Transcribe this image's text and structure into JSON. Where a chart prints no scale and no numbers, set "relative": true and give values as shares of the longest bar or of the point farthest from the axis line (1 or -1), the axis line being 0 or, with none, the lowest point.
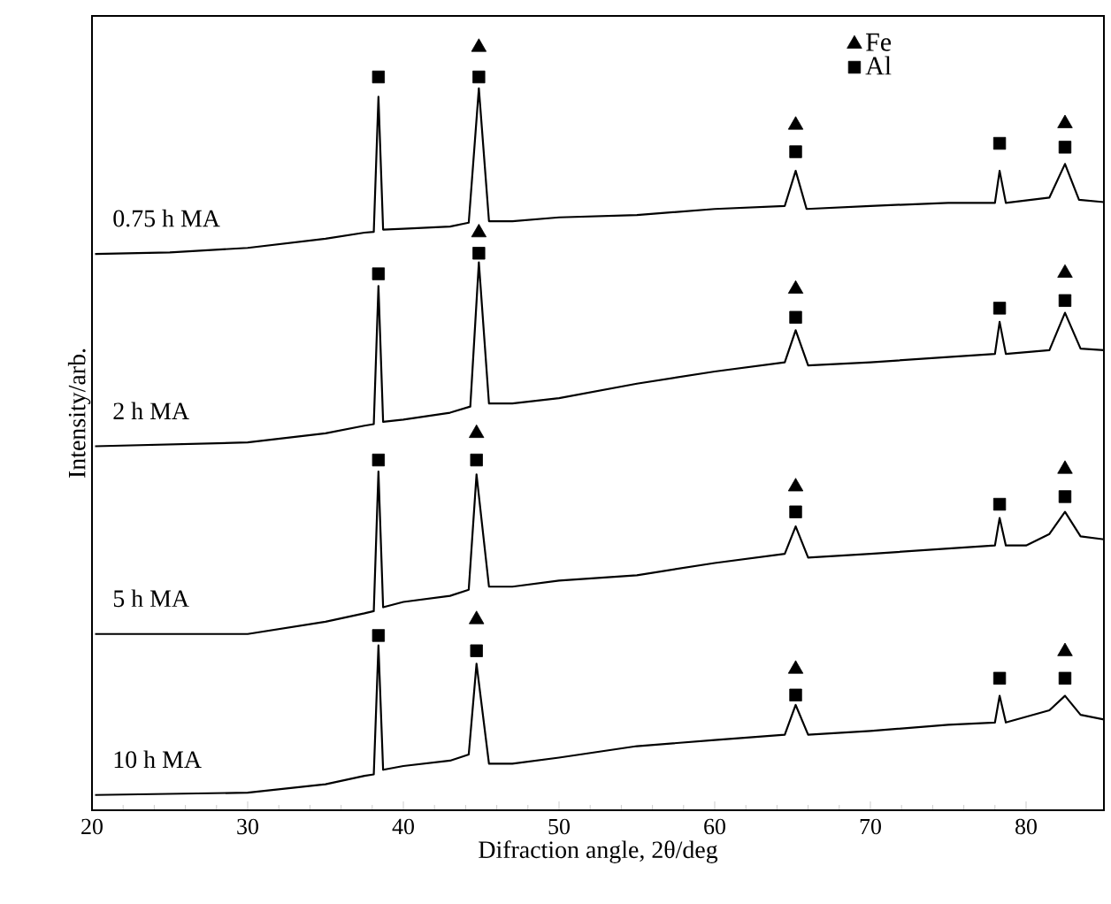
{
  "chart_data": {
    "type": "line",
    "xlabel": "Difraction angle, 2θ/deg",
    "ylabel": "Intensity/arb.",
    "relative": true,
    "xlim": [
      20,
      85
    ],
    "xticks": [
      20,
      30,
      40,
      50,
      60,
      70,
      80
    ],
    "tick_labels": "x",
    "legend": "top right",
    "series": [
      {
        "name": "0.75 h MA",
        "color": "#000000",
        "x": [
          20.2,
          25,
          30,
          35,
          37.5,
          38.1,
          38.4,
          38.7,
          40,
          43,
          44.2,
          44.85,
          45.5,
          47,
          50,
          55,
          60,
          64.5,
          65.2,
          65.9,
          70,
          75,
          78,
          78.3,
          78.7,
          81.5,
          82.5,
          83.4,
          85
        ],
        "values": [
          0.729,
          0.731,
          0.737,
          0.749,
          0.757,
          0.758,
          0.935,
          0.761,
          0.762,
          0.765,
          0.77,
          0.946,
          0.772,
          0.772,
          0.777,
          0.78,
          0.788,
          0.792,
          0.838,
          0.788,
          0.792,
          0.796,
          0.796,
          0.838,
          0.796,
          0.803,
          0.847,
          0.8,
          0.797
        ]
      },
      {
        "name": "2 h MA",
        "color": "#000000",
        "x": [
          20.2,
          30,
          35,
          37.5,
          38.1,
          38.4,
          38.7,
          40,
          43,
          44.3,
          44.85,
          45.5,
          47,
          50,
          55,
          60,
          64.5,
          65.2,
          66,
          70,
          75,
          78,
          78.3,
          78.7,
          81.5,
          82.5,
          83.5,
          85
        ],
        "values": [
          0.477,
          0.482,
          0.494,
          0.504,
          0.506,
          0.687,
          0.509,
          0.512,
          0.521,
          0.529,
          0.718,
          0.533,
          0.533,
          0.54,
          0.559,
          0.575,
          0.587,
          0.629,
          0.583,
          0.587,
          0.594,
          0.598,
          0.64,
          0.598,
          0.603,
          0.652,
          0.605,
          0.603
        ]
      },
      {
        "name": "5 h MA",
        "color": "#000000",
        "x": [
          20.2,
          30,
          35,
          37.5,
          38.1,
          38.4,
          38.7,
          40,
          43,
          44.2,
          44.7,
          45.5,
          47,
          50,
          55,
          60,
          64.5,
          65.2,
          66,
          70,
          75,
          78,
          78.3,
          78.7,
          80,
          81.5,
          82.5,
          83.5,
          85
        ],
        "values": [
          0.231,
          0.231,
          0.247,
          0.258,
          0.261,
          0.444,
          0.266,
          0.273,
          0.281,
          0.289,
          0.44,
          0.293,
          0.293,
          0.301,
          0.308,
          0.324,
          0.336,
          0.372,
          0.331,
          0.336,
          0.343,
          0.347,
          0.383,
          0.347,
          0.347,
          0.362,
          0.391,
          0.359,
          0.355
        ]
      },
      {
        "name": "10 h MA",
        "color": "#000000",
        "x": [
          20.2,
          30,
          35,
          37.5,
          38.1,
          38.4,
          38.7,
          40,
          43,
          44.2,
          44.7,
          45.5,
          47,
          50,
          55,
          60,
          64.5,
          65.2,
          66,
          70,
          75,
          78,
          78.3,
          78.7,
          81.5,
          82.5,
          83.5,
          85
        ],
        "values": [
          0.02,
          0.023,
          0.034,
          0.045,
          0.047,
          0.216,
          0.053,
          0.058,
          0.065,
          0.073,
          0.192,
          0.061,
          0.061,
          0.069,
          0.084,
          0.092,
          0.099,
          0.138,
          0.099,
          0.104,
          0.112,
          0.115,
          0.15,
          0.115,
          0.131,
          0.15,
          0.125,
          0.119
        ]
      },
      {
        "name": "Fe",
        "type": "scatter",
        "marker": "triangle",
        "color": "#000000",
        "x": [
          44.85,
          65.2,
          82.5,
          44.85,
          65.2,
          82.5,
          44.7,
          65.2,
          82.5,
          44.7,
          65.2,
          82.5
        ],
        "values": [
          1.0,
          0.898,
          0.9,
          0.757,
          0.683,
          0.704,
          0.494,
          0.424,
          0.447,
          0.25,
          0.185,
          0.208
        ]
      },
      {
        "name": "Al",
        "type": "scatter",
        "marker": "square",
        "color": "#000000",
        "x": [
          38.4,
          44.85,
          65.2,
          78.3,
          82.5,
          38.4,
          44.85,
          65.2,
          78.3,
          82.5,
          38.4,
          44.7,
          65.2,
          78.3,
          82.5,
          38.4,
          44.7,
          65.2,
          78.3,
          82.5
        ],
        "values": [
          0.961,
          0.961,
          0.863,
          0.874,
          0.869,
          0.703,
          0.73,
          0.646,
          0.658,
          0.668,
          0.459,
          0.459,
          0.391,
          0.401,
          0.411,
          0.229,
          0.209,
          0.151,
          0.173,
          0.173
        ]
      }
    ]
  }
}
